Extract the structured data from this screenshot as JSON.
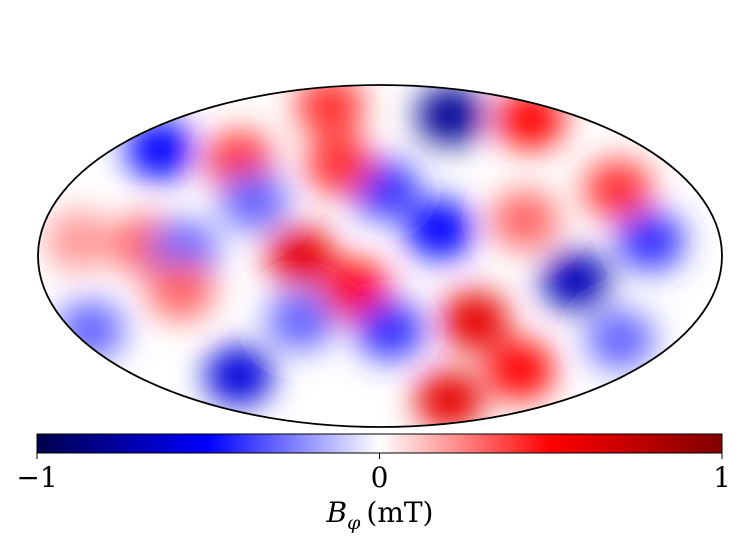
{
  "chart_data": {
    "type": "mollweide",
    "projection": "mollweide",
    "colormap": [
      "#00004c",
      "#0000ff",
      "#ffffff",
      "#ff0000",
      "#800000"
    ],
    "clim": [
      -1,
      1
    ],
    "cticks": [
      {
        "value": -1,
        "label": "−1"
      },
      0,
      1
    ],
    "colorbar_label": {
      "symbol": "B",
      "subscript": "φ",
      "unit": "(mT)"
    },
    "field": [
      {
        "lon": 65,
        "lat": 74,
        "value": -0.8
      },
      {
        "lon": 132,
        "lat": 72,
        "value": 0.5
      },
      {
        "lon": -55,
        "lat": 79,
        "value": 0.4
      },
      {
        "lon": -148,
        "lat": 56,
        "value": -0.5
      },
      {
        "lon": -42,
        "lat": 0,
        "value": 0.6
      },
      {
        "lon": -13,
        "lat": -18,
        "value": 0.5
      },
      {
        "lon": 3,
        "lat": 35,
        "value": -0.4
      },
      {
        "lon": 32,
        "lat": 14,
        "value": -0.5
      },
      {
        "lon": 104,
        "lat": -13,
        "value": -0.7
      },
      {
        "lon": 54,
        "lat": -34,
        "value": 0.6
      },
      {
        "lon": 68,
        "lat": -76,
        "value": 0.6
      },
      {
        "lon": 99,
        "lat": -60,
        "value": 0.5
      },
      {
        "lon": -104,
        "lat": -63,
        "value": -0.6
      },
      {
        "lon": 6,
        "lat": -39,
        "value": -0.4
      },
      {
        "lon": -124,
        "lat": 6,
        "value": 0.3
      },
      {
        "lon": -103,
        "lat": 3,
        "value": -0.3
      },
      {
        "lon": 136,
        "lat": 35,
        "value": 0.4
      },
      {
        "lon": 143,
        "lat": 8,
        "value": -0.4
      },
      {
        "lon": -89,
        "lat": 50,
        "value": 0.4
      },
      {
        "lon": -159,
        "lat": 8,
        "value": 0.2
      },
      {
        "lon": -70,
        "lat": 29,
        "value": -0.3
      },
      {
        "lon": -107,
        "lat": -18,
        "value": 0.3
      },
      {
        "lon": -169,
        "lat": -39,
        "value": -0.3
      },
      {
        "lon": -25,
        "lat": 48,
        "value": 0.4
      },
      {
        "lon": -45,
        "lat": -34,
        "value": -0.3
      },
      {
        "lon": 78,
        "lat": 19,
        "value": 0.3
      },
      {
        "lon": 145,
        "lat": -44,
        "value": -0.3
      }
    ]
  }
}
